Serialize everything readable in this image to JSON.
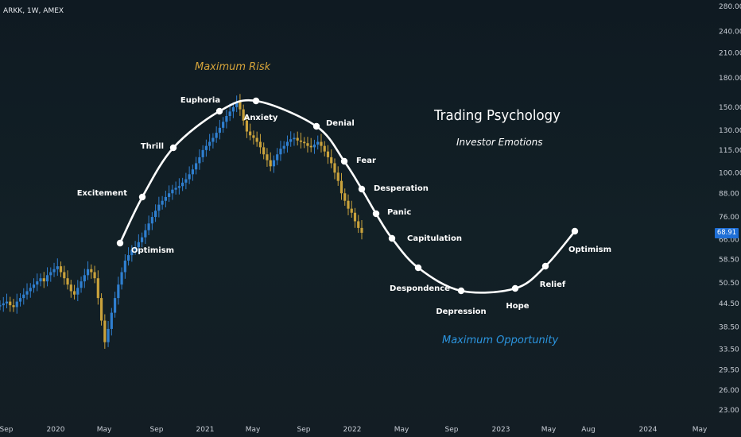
{
  "symbol": "ARKK, 1W, AMEX",
  "title": "Trading Psychology",
  "subtitle": "Investor Emotions",
  "max_risk": "Maximum Risk",
  "max_opportunity": "Maximum Opportunity",
  "last_price": "68.91",
  "colors": {
    "background": "#131d24",
    "up": "#2f7fd0",
    "down": "#c9a23c",
    "curve": "#ffffff",
    "max_risk": "#d4a33a",
    "max_opportunity": "#2b95e0",
    "price_tag": "#1f6fd6"
  },
  "chart_data": {
    "type": "line",
    "y_scale": "log",
    "y_ticks": [
      "280.00",
      "240.00",
      "210.00",
      "180.00",
      "150.00",
      "130.00",
      "115.00",
      "100.00",
      "88.00",
      "76.00",
      "66.00",
      "58.50",
      "50.50",
      "44.50",
      "38.50",
      "33.50",
      "29.50",
      "26.00",
      "23.00"
    ],
    "x_ticks": [
      "Sep",
      "2020",
      "May",
      "Sep",
      "2021",
      "May",
      "Sep",
      "2022",
      "May",
      "Sep",
      "2023",
      "May",
      "Aug",
      "2024",
      "May"
    ],
    "emotion_cycle": [
      {
        "label": "Optimism",
        "dot": true
      },
      {
        "label": "Excitement",
        "dot": true
      },
      {
        "label": "Thrill",
        "dot": true
      },
      {
        "label": "Euphoria",
        "dot": true
      },
      {
        "label": "Anxiety",
        "dot": true
      },
      {
        "label": "Denial",
        "dot": true
      },
      {
        "label": "Fear",
        "dot": true
      },
      {
        "label": "Desperation",
        "dot": true
      },
      {
        "label": "Panic",
        "dot": true
      },
      {
        "label": "Capitulation",
        "dot": true
      },
      {
        "label": "Despondence",
        "dot": true
      },
      {
        "label": "Depression",
        "dot": true
      },
      {
        "label": "Hope",
        "dot": true
      },
      {
        "label": "Relief",
        "dot": true
      },
      {
        "label": "Optimism",
        "dot": true
      }
    ],
    "price_series_close": [
      44,
      44.5,
      45,
      44,
      43.5,
      45,
      46,
      47,
      48,
      49,
      50,
      51,
      52,
      51,
      53,
      54,
      55,
      56,
      54,
      52,
      50,
      48,
      47,
      49,
      51,
      53,
      55,
      54,
      52,
      46,
      40,
      35,
      38,
      42,
      46,
      50,
      54,
      58,
      60,
      62,
      63,
      65,
      67,
      70,
      73,
      76,
      79,
      82,
      84,
      86,
      88,
      90,
      91,
      92,
      94,
      96,
      99,
      102,
      106,
      110,
      115,
      118,
      121,
      124,
      128,
      132,
      137,
      142,
      146,
      150,
      155,
      148,
      138,
      129,
      126,
      124,
      121,
      117,
      112,
      108,
      104,
      108,
      112,
      116,
      118,
      121,
      123,
      124,
      122,
      121,
      120,
      118,
      117,
      119,
      121,
      118,
      114,
      110,
      106,
      100,
      95,
      88,
      84,
      80,
      78,
      74,
      71,
      68.91
    ]
  }
}
